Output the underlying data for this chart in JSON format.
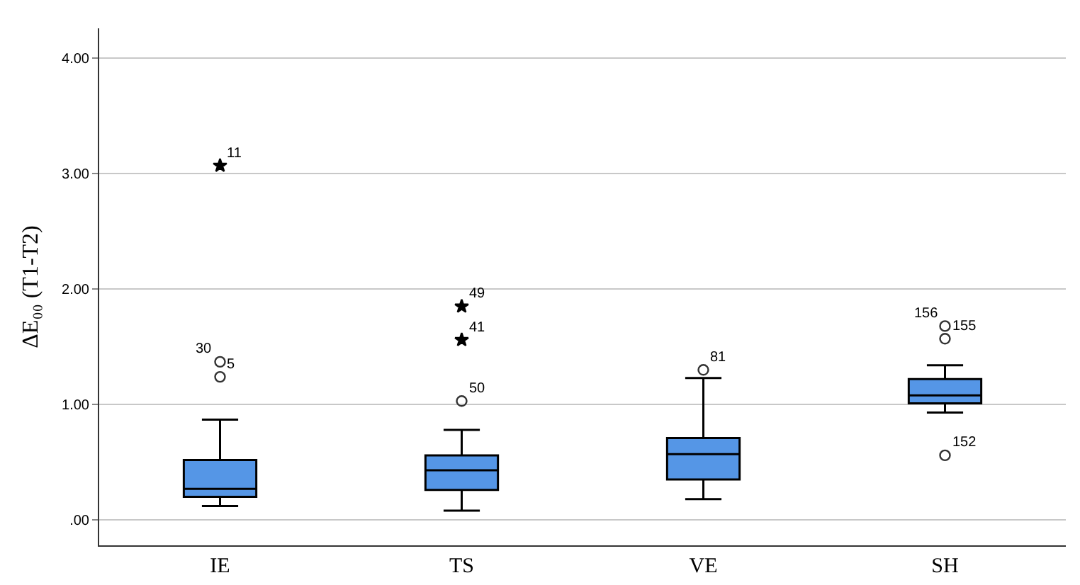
{
  "chart_data": {
    "type": "box",
    "ylabel": "ΔE₀₀ (T1-T2)",
    "categories": [
      "IE",
      "TS",
      "VE",
      "SH"
    ],
    "series": [
      {
        "color": "#5596e6",
        "boxes": [
          {
            "low": 0.12,
            "q1": 0.2,
            "median": 0.27,
            "q3": 0.52,
            "high": 0.87
          },
          {
            "low": 0.08,
            "q1": 0.26,
            "median": 0.43,
            "q3": 0.56,
            "high": 0.78
          },
          {
            "low": 0.18,
            "q1": 0.35,
            "median": 0.57,
            "q3": 0.71,
            "high": 1.23
          },
          {
            "low": 0.93,
            "q1": 1.01,
            "median": 1.08,
            "q3": 1.22,
            "high": 1.34
          }
        ]
      },
      {
        "type": "scatter",
        "marker": "circle",
        "color": "#333333",
        "x": [
          "IE",
          "IE",
          "TS",
          "VE",
          "SH",
          "SH",
          "SH"
        ],
        "values": [
          1.37,
          1.24,
          1.03,
          1.3,
          1.68,
          1.57,
          0.56
        ]
      },
      {
        "type": "scatter",
        "marker": "star",
        "color": "#000000",
        "x": [
          "IE",
          "TS",
          "TS"
        ],
        "values": [
          3.07,
          1.85,
          1.56
        ]
      }
    ],
    "annotations": [
      {
        "text": "11",
        "x": "IE",
        "y": 3.07
      },
      {
        "text": "30",
        "x": "IE",
        "y": 1.37
      },
      {
        "text": "5",
        "x": "IE",
        "y": 1.24
      },
      {
        "text": "49",
        "x": "TS",
        "y": 1.85
      },
      {
        "text": "41",
        "x": "TS",
        "y": 1.56
      },
      {
        "text": "50",
        "x": "TS",
        "y": 1.03
      },
      {
        "text": "81",
        "x": "VE",
        "y": 1.3
      },
      {
        "text": "156",
        "x": "SH",
        "y": 1.68
      },
      {
        "text": "155",
        "x": "SH",
        "y": 1.57
      },
      {
        "text": "152",
        "x": "SH",
        "y": 0.56
      }
    ],
    "ylim": [
      -0.22,
      4.26
    ],
    "yticks": [
      {
        "value": 0,
        "label": ".00"
      },
      {
        "value": 1,
        "label": "1.00"
      },
      {
        "value": 2,
        "label": "2.00"
      },
      {
        "value": 3,
        "label": "3.00"
      },
      {
        "value": 4,
        "label": "4.00"
      }
    ],
    "grid": "y"
  }
}
